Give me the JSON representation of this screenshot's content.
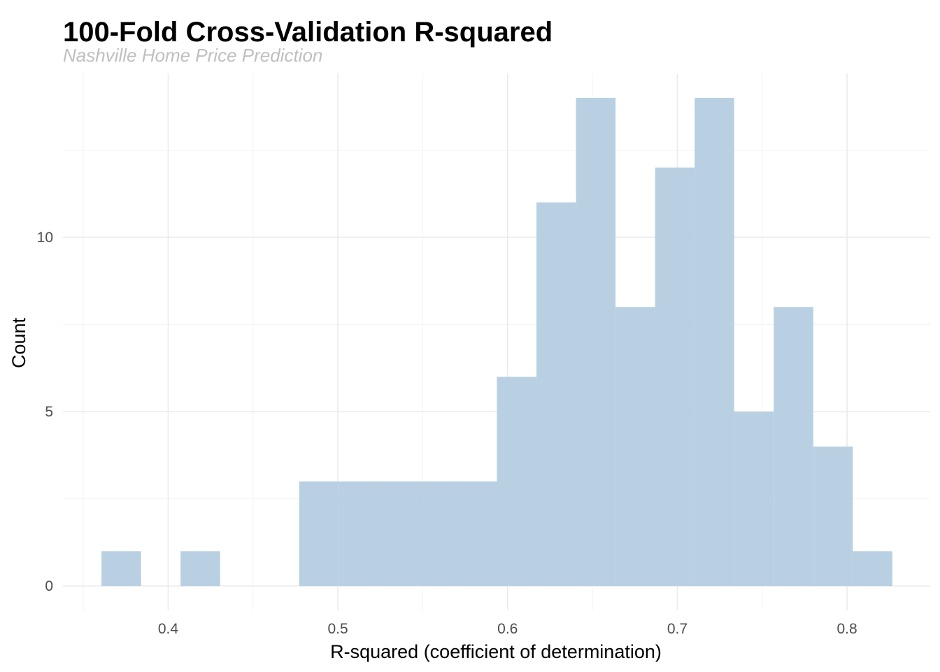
{
  "chart_data": {
    "type": "bar",
    "title": "100-Fold Cross-Validation R-squared",
    "subtitle": "Nashville Home Price Prediction",
    "xlabel": "R-squared (coefficient of determination)",
    "ylabel": "Count",
    "bin_width": 0.0233,
    "bins": [
      {
        "x0": 0.3607,
        "x1": 0.384,
        "count": 1
      },
      {
        "x0": 0.384,
        "x1": 0.4073,
        "count": 0
      },
      {
        "x0": 0.4073,
        "x1": 0.4306,
        "count": 1
      },
      {
        "x0": 0.4306,
        "x1": 0.4539,
        "count": 0
      },
      {
        "x0": 0.4539,
        "x1": 0.4772,
        "count": 0
      },
      {
        "x0": 0.4772,
        "x1": 0.5005,
        "count": 3
      },
      {
        "x0": 0.5005,
        "x1": 0.5238,
        "count": 3
      },
      {
        "x0": 0.5238,
        "x1": 0.5471,
        "count": 3
      },
      {
        "x0": 0.5471,
        "x1": 0.5704,
        "count": 3
      },
      {
        "x0": 0.5704,
        "x1": 0.5937,
        "count": 3
      },
      {
        "x0": 0.5937,
        "x1": 0.617,
        "count": 6
      },
      {
        "x0": 0.617,
        "x1": 0.6403,
        "count": 11
      },
      {
        "x0": 0.6403,
        "x1": 0.6636,
        "count": 14
      },
      {
        "x0": 0.6636,
        "x1": 0.6869,
        "count": 8
      },
      {
        "x0": 0.6869,
        "x1": 0.7102,
        "count": 12
      },
      {
        "x0": 0.7102,
        "x1": 0.7335,
        "count": 14
      },
      {
        "x0": 0.7335,
        "x1": 0.7568,
        "count": 5
      },
      {
        "x0": 0.7568,
        "x1": 0.7801,
        "count": 8
      },
      {
        "x0": 0.7801,
        "x1": 0.8034,
        "count": 4
      },
      {
        "x0": 0.8034,
        "x1": 0.8267,
        "count": 1
      }
    ],
    "xlim": [
      0.338,
      0.849
    ],
    "ylim": [
      -0.7,
      14.7
    ],
    "x_ticks": [
      0.4,
      0.5,
      0.6,
      0.7,
      0.8
    ],
    "x_tick_labels": [
      "0.4",
      "0.5",
      "0.6",
      "0.7",
      "0.8"
    ],
    "y_ticks": [
      0,
      5,
      10
    ],
    "y_tick_labels": [
      "0",
      "5",
      "10"
    ],
    "grid": true,
    "colors": {
      "bar": "#b8d0e2",
      "grid": "#ebebeb"
    }
  }
}
